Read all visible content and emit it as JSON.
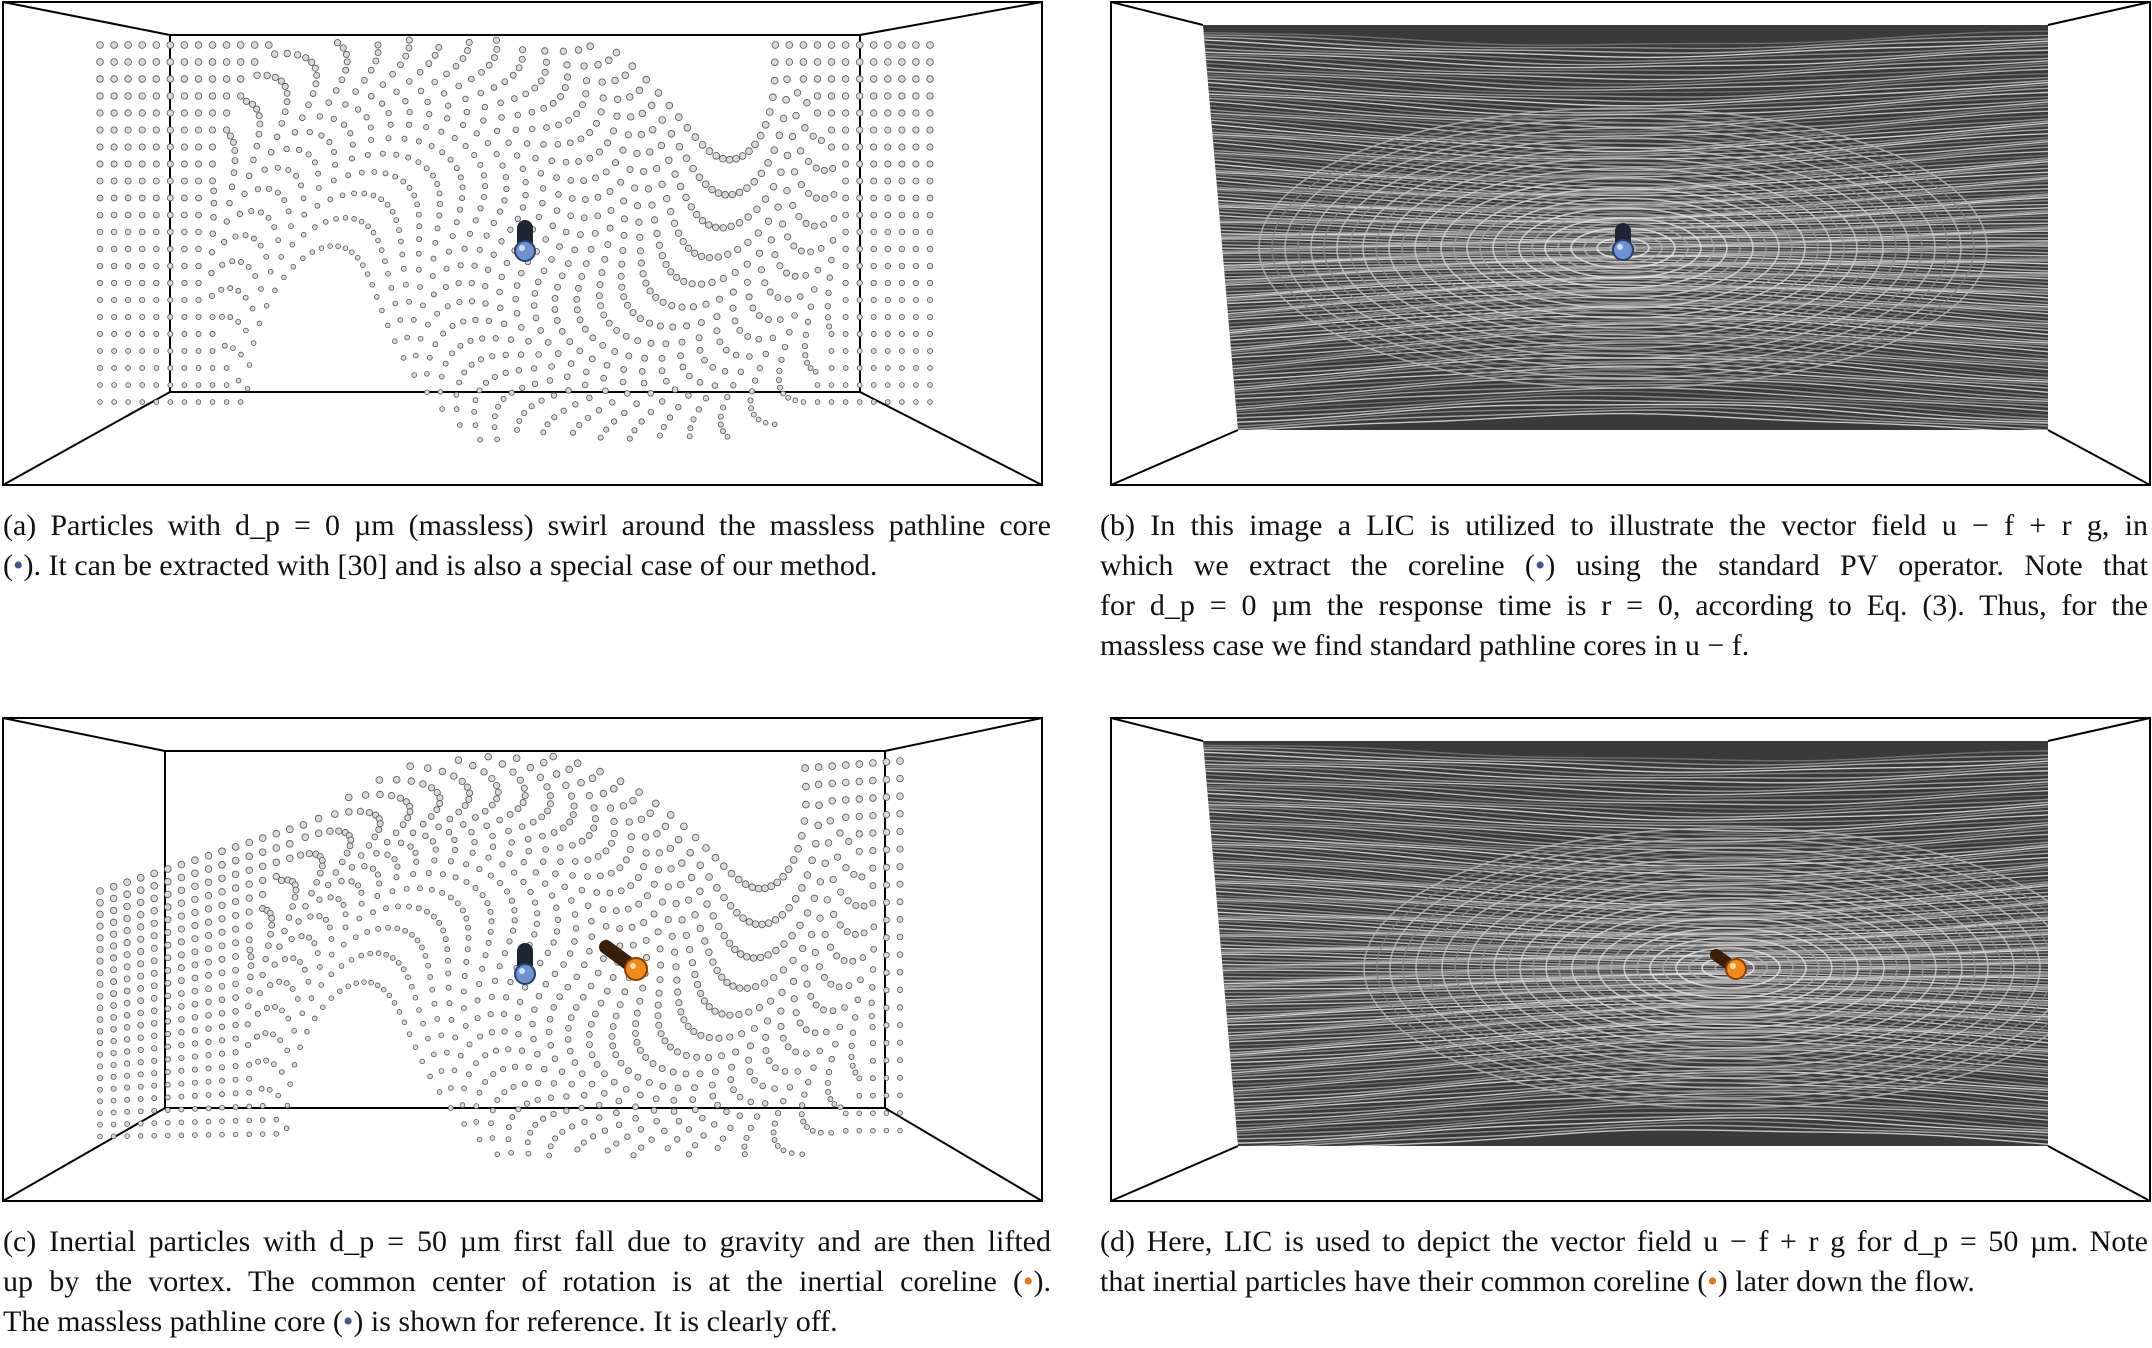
{
  "figure": {
    "panels": [
      {
        "id": "a",
        "type": "particles",
        "dp_um": 0,
        "caption_lines": [
          "(a) Particles with d_p = 0 µm (massless) swirl around the massless pathline core",
          "(•). It can be extracted with [30] and is also a special case of our method."
        ]
      },
      {
        "id": "b",
        "type": "lic",
        "caption_lines": [
          "(b) In this image a LIC is utilized to illustrate the vector field u − f + r g, in",
          "which we extract the coreline (•) using the standard PV operator. Note that",
          "for d_p = 0 µm the response time is r = 0, according to Eq. (3). Thus, for the",
          "massless case we find standard pathline cores in u − f."
        ]
      },
      {
        "id": "c",
        "type": "particles",
        "dp_um": 50,
        "caption_lines": [
          "(c) Inertial particles with d_p = 50 µm first fall due to gravity and are then lifted",
          "up by the vortex. The common center of rotation is at the inertial coreline (•).",
          "The massless pathline core (•) is shown for reference. It is clearly off."
        ]
      },
      {
        "id": "d",
        "type": "lic",
        "caption_lines": [
          "(d) Here, LIC is used to depict the vector field u − f + r g for d_p = 50 µm. Note",
          "that inertial particles have their common coreline (•) later down the flow."
        ]
      }
    ],
    "colors": {
      "massless_core": "#3d5a8a",
      "inertial_core": "#e07a18",
      "lic_background": "#3a3a3a"
    }
  }
}
